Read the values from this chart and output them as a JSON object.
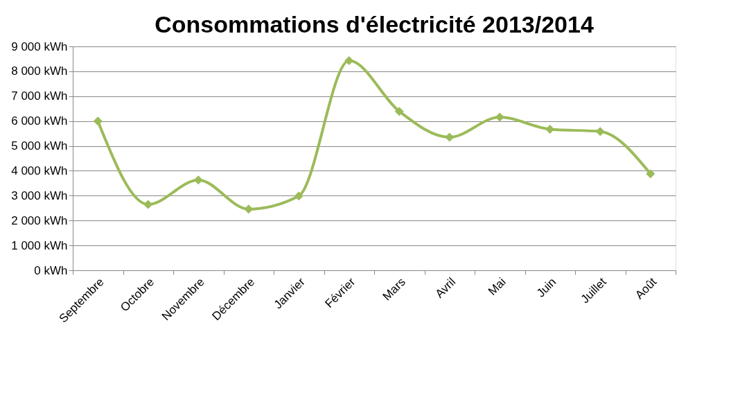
{
  "chart_data": {
    "type": "line",
    "title": "Consommations d'électricité 2013/2014",
    "categories": [
      "Septembre",
      "Octobre",
      "Novembre",
      "Décembre",
      "Janvier",
      "Février",
      "Mars",
      "Avril",
      "Mai",
      "Juin",
      "Juillet",
      "Août"
    ],
    "series": [
      {
        "color": "#9bbb59",
        "values": [
          6000,
          2650,
          3630,
          2460,
          2990,
          8430,
          6390,
          5350,
          6160,
          5670,
          5580,
          3880
        ]
      }
    ],
    "ylim": [
      0,
      9000
    ],
    "yticks": [
      {
        "value": 0,
        "label": "0 kWh"
      },
      {
        "value": 1000,
        "label": "1 000 kWh"
      },
      {
        "value": 2000,
        "label": "2 000 kWh"
      },
      {
        "value": 3000,
        "label": "3 000 kWh"
      },
      {
        "value": 4000,
        "label": "4 000 kWh"
      },
      {
        "value": 5000,
        "label": "5 000 kWh"
      },
      {
        "value": 6000,
        "label": "6 000 kWh"
      },
      {
        "value": 7000,
        "label": "7 000 kWh"
      },
      {
        "value": 8000,
        "label": "8 000 kWh"
      },
      {
        "value": 9000,
        "label": "9 000 kWh"
      }
    ],
    "grid": "y",
    "marker": "diamond",
    "line_style": "solid",
    "legend": false
  }
}
